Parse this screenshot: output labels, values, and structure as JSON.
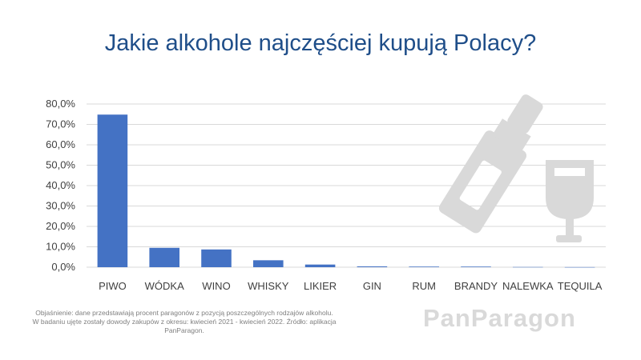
{
  "title": "Jakie alkohole najczęściej kupują Polacy?",
  "note": "Objaśnienie: dane przedstawiają procent paragonów z pozycją poszczególnych rodzajów alkoholu. W badaniu ujęte zostały dowody zakupów z okresu: kwiecień 2021 - kwiecień 2022. Źródło: aplikacja PanParagon.",
  "brand": "PanParagon",
  "colors": {
    "bar": "#4472c4",
    "title": "#1f4e89",
    "grid": "#d9d9d9",
    "deco": "#d9d9d9"
  },
  "icons": [
    "bottle-icon",
    "wine-glass-icon"
  ],
  "chart_data": {
    "type": "bar",
    "categories": [
      "PIWO",
      "WÓDKA",
      "WINO",
      "WHISKY",
      "LIKIER",
      "GIN",
      "RUM",
      "BRANDY",
      "NALEWKA",
      "TEQUILA"
    ],
    "values": [
      74.8,
      9.5,
      8.7,
      3.4,
      1.3,
      0.4,
      0.3,
      0.3,
      0.1,
      0.05
    ],
    "ylim": [
      0,
      80
    ],
    "yticks": [
      "0,0%",
      "10,0%",
      "20,0%",
      "30,0%",
      "40,0%",
      "50,0%",
      "60,0%",
      "70,0%",
      "80,0%"
    ],
    "xlabel": "",
    "ylabel": "",
    "grid": true
  }
}
